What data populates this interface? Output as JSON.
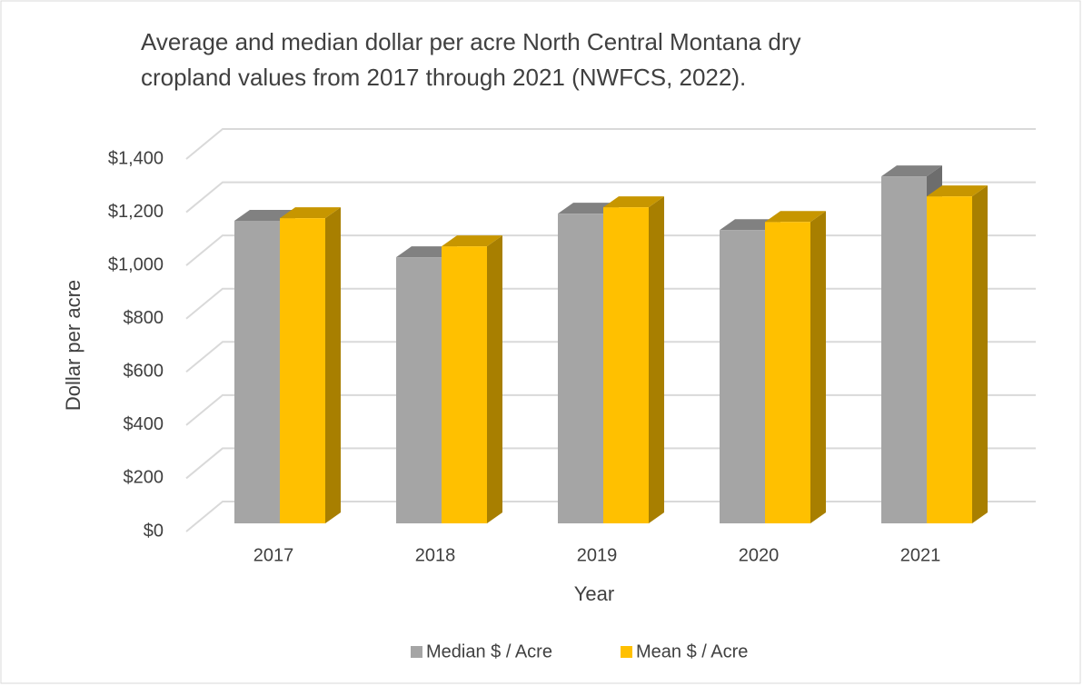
{
  "chart_data": {
    "type": "bar3d",
    "title_lines": [
      "Average and median dollar per acre North Central Montana dry",
      "cropland values from 2017 through 2021 (NWFCS, 2022)."
    ],
    "xlabel": "Year",
    "ylabel": "Dollar per acre",
    "categories": [
      "2017",
      "2018",
      "2019",
      "2020",
      "2021"
    ],
    "series": [
      {
        "name": "Median $ / Acre",
        "color": "#a5a5a5",
        "values": [
          1137,
          1000,
          1164,
          1102,
          1304
        ]
      },
      {
        "name": "Mean $ / Acre",
        "color": "#ffc000",
        "values": [
          1147,
          1041,
          1188,
          1133,
          1229
        ]
      }
    ],
    "ylim": [
      0,
      1400
    ],
    "yticks": [
      {
        "value": 0,
        "label": "$0"
      },
      {
        "value": 200,
        "label": "$200"
      },
      {
        "value": 400,
        "label": "$400"
      },
      {
        "value": 600,
        "label": "$600"
      },
      {
        "value": 800,
        "label": "$800"
      },
      {
        "value": 1000,
        "label": "$1,000"
      },
      {
        "value": 1200,
        "label": "$1,200"
      },
      {
        "value": 1400,
        "label": "$1,400"
      }
    ],
    "grid": true,
    "legend": "bottom"
  }
}
